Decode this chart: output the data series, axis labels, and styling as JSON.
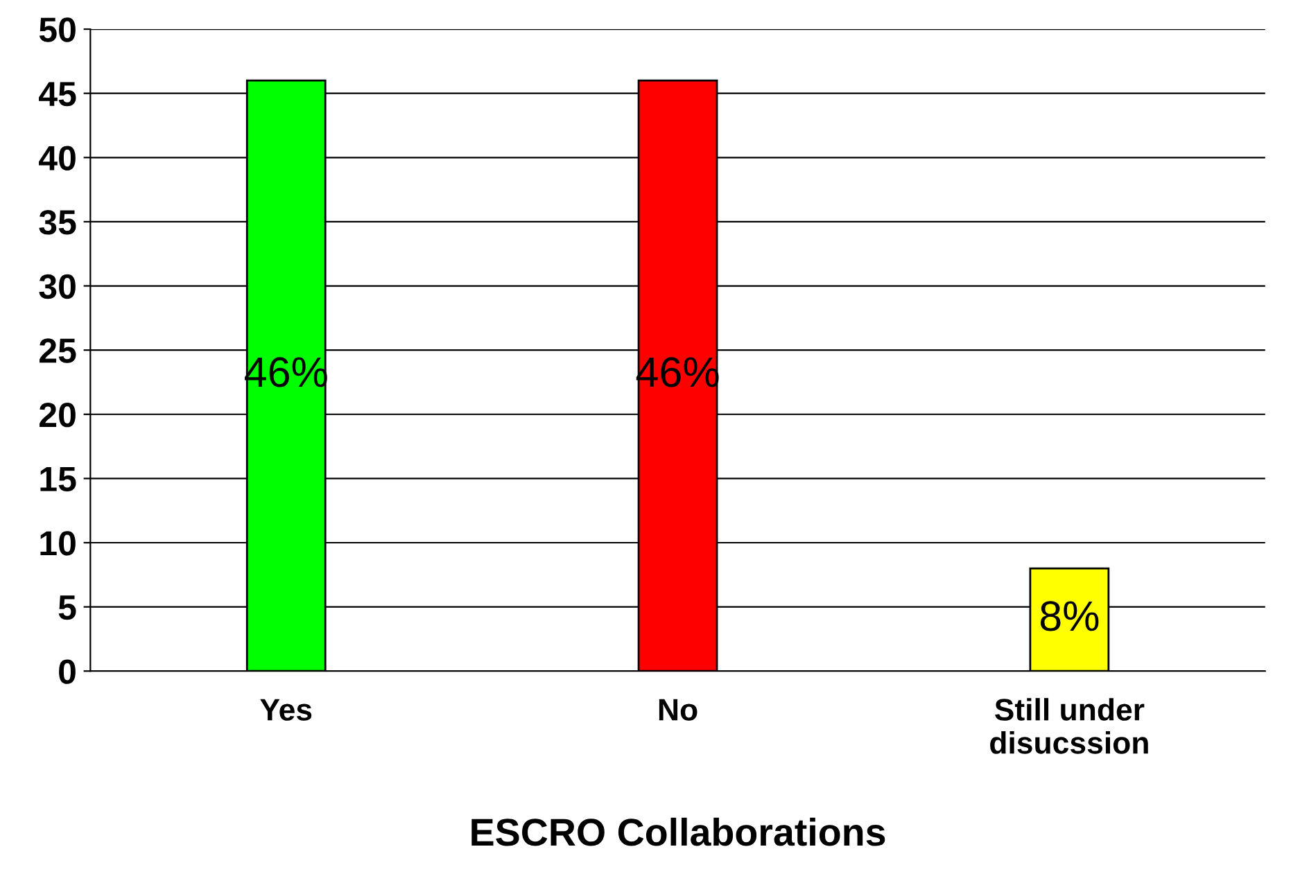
{
  "chart_data": {
    "type": "bar",
    "xlabel": "ESCRO Collaborations",
    "categories": [
      "Yes",
      "No",
      "Still under\ndisucssion"
    ],
    "values": [
      46,
      46,
      8
    ],
    "colors": [
      "#00ff00",
      "#ff0000",
      "#ffff00"
    ],
    "value_labels": [
      "46%",
      "46%",
      "8%"
    ],
    "ylim": [
      0,
      50
    ],
    "yticks": [
      0,
      5,
      10,
      15,
      20,
      25,
      30,
      35,
      40,
      45,
      50
    ],
    "grid": "y",
    "legend": false
  }
}
